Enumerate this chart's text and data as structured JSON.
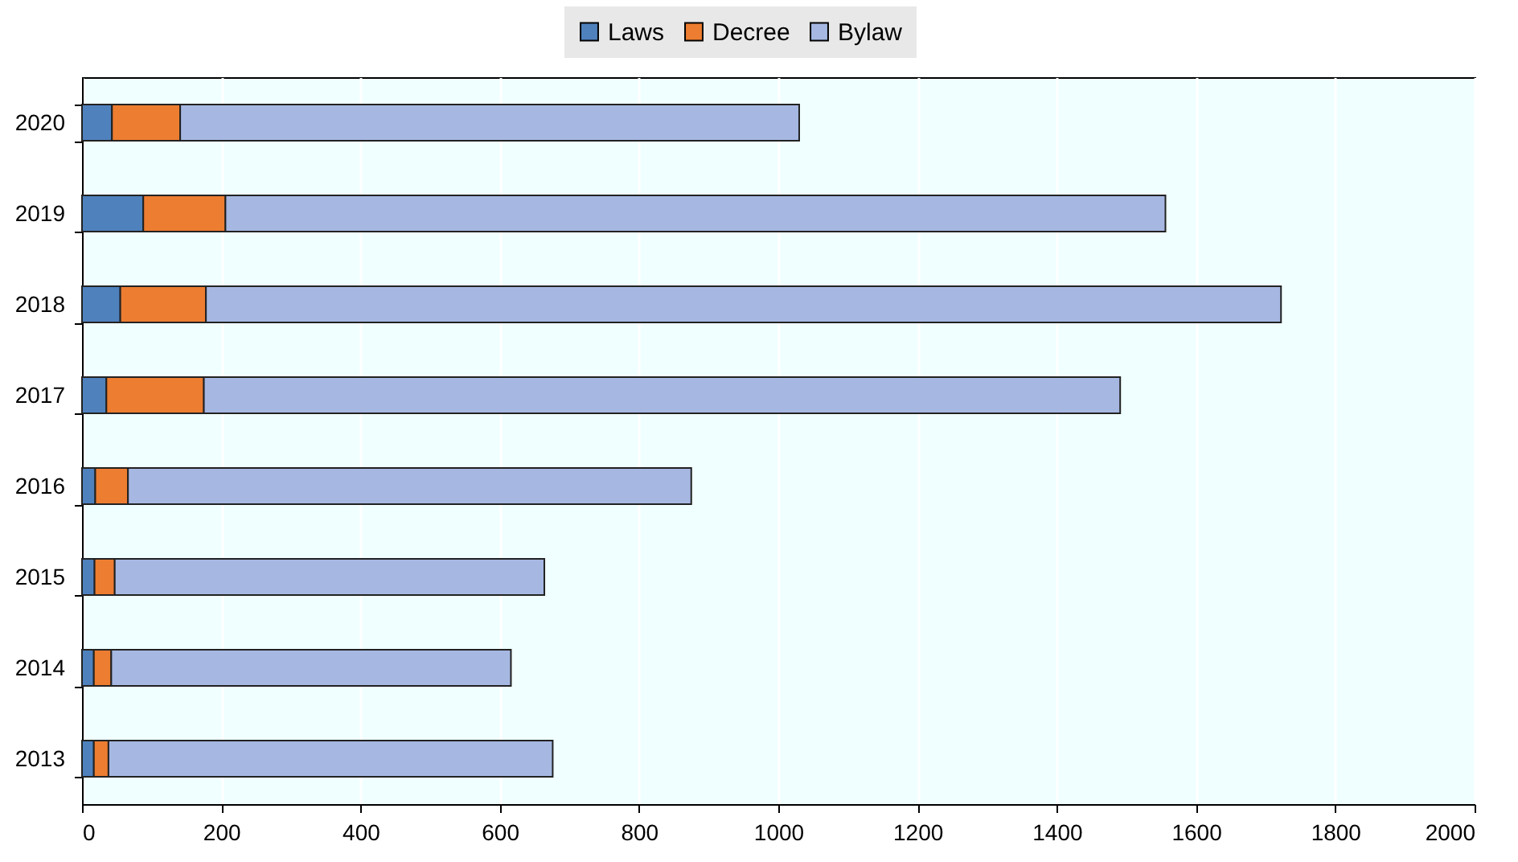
{
  "chart_data": {
    "type": "bar",
    "orientation": "horizontal",
    "stacked": true,
    "categories": [
      "2020",
      "2019",
      "2018",
      "2017",
      "2016",
      "2015",
      "2014",
      "2013"
    ],
    "series": [
      {
        "name": "Laws",
        "color": "#4f81bd",
        "values": [
          43,
          88,
          55,
          35,
          19,
          18,
          17,
          17
        ]
      },
      {
        "name": "Decree",
        "color": "#ed7d31",
        "values": [
          98,
          118,
          123,
          140,
          47,
          29,
          25,
          21
        ]
      },
      {
        "name": "Bylaw",
        "color": "#a6b8e2",
        "values": [
          889,
          1350,
          1544,
          1316,
          809,
          617,
          574,
          638
        ]
      }
    ],
    "xlim": [
      0,
      2000
    ],
    "xticks": [
      0,
      200,
      400,
      600,
      800,
      1000,
      1200,
      1400,
      1600,
      1800,
      2000
    ],
    "grid": "x",
    "legend": "top"
  }
}
